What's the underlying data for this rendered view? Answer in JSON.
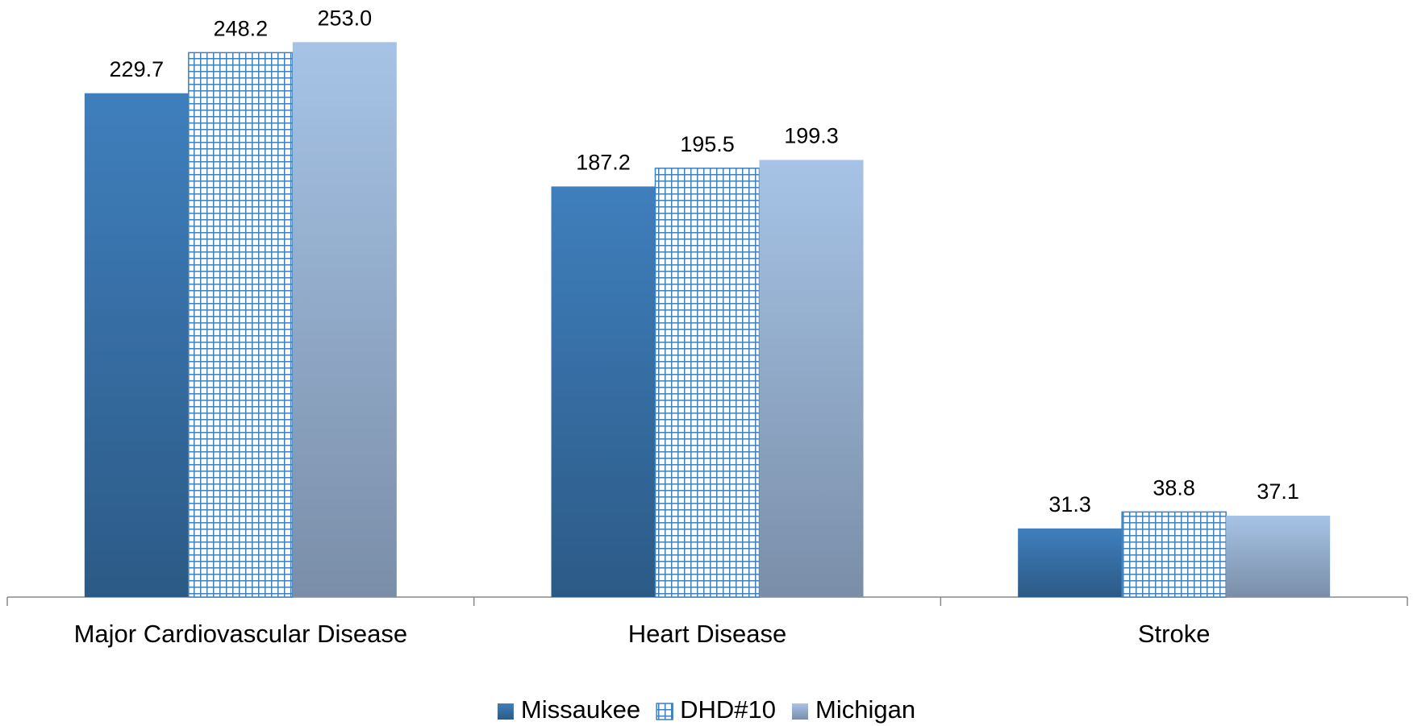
{
  "chart_data": {
    "type": "bar",
    "categories": [
      "Major Cardiovascular Disease",
      "Heart Disease",
      "Stroke"
    ],
    "series": [
      {
        "name": "Missaukee",
        "color": "#3f7fbd",
        "values": [
          229.7,
          187.2,
          31.3
        ],
        "value_labels": [
          "229.7",
          "187.2",
          "31.3"
        ]
      },
      {
        "name": "DHD#10",
        "color": "#3f7fbd",
        "pattern": "grid",
        "values": [
          248.2,
          195.5,
          38.8
        ],
        "value_labels": [
          "248.2",
          "195.5",
          "38.8"
        ]
      },
      {
        "name": "Michigan",
        "color": "#a6c3e6",
        "values": [
          253.0,
          199.3,
          37.1
        ],
        "value_labels": [
          "253.0",
          "199.3",
          "37.1"
        ]
      }
    ],
    "ylim": [
      0,
      270
    ]
  }
}
